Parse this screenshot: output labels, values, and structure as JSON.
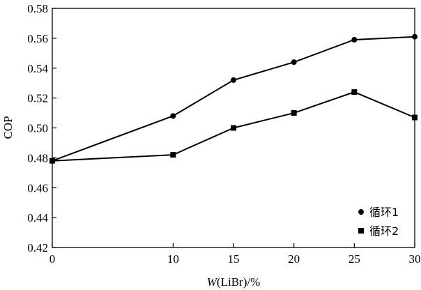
{
  "chart_data": {
    "type": "line",
    "x": [
      0,
      10,
      15,
      20,
      25,
      30
    ],
    "xticks": [
      "0",
      "10",
      "15",
      "20",
      "25",
      "30"
    ],
    "yticks": [
      "0.42",
      "0.44",
      "0.46",
      "0.48",
      "0.50",
      "0.52",
      "0.54",
      "0.56",
      "0.58"
    ],
    "xlim": [
      0,
      30
    ],
    "ylim": [
      0.42,
      0.58
    ],
    "xlabel": {
      "italic_part": "W",
      "rest": "(LiBr)/%"
    },
    "ylabel": "COP",
    "grid": false,
    "legend_position": "bottom-right",
    "series": [
      {
        "name": "循环1",
        "marker": "circle",
        "color": "#000000",
        "values": [
          0.478,
          0.508,
          0.532,
          0.544,
          0.559,
          0.561
        ]
      },
      {
        "name": "循环2",
        "marker": "square",
        "color": "#000000",
        "values": [
          0.478,
          0.482,
          0.5,
          0.51,
          0.524,
          0.507
        ]
      }
    ]
  }
}
